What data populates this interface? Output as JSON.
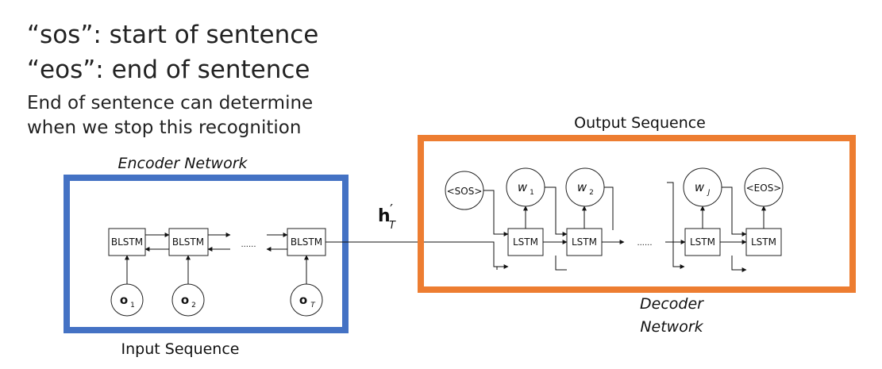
{
  "notes": {
    "sos": "“sos”: start of sentence",
    "eos": "“eos”: end of sentence",
    "line1": "End of sentence can determine",
    "line2": "when we stop this recognition"
  },
  "colors": {
    "encoder_frame": "#4472C4",
    "decoder_frame": "#ED7D31"
  },
  "encoder": {
    "title": "Encoder Network",
    "footer": "Input Sequence",
    "cell_label": "BLSTM",
    "inputs": [
      "o",
      "o",
      "o"
    ],
    "input_subs": [
      "1",
      "2",
      "T"
    ],
    "ellipsis": "......"
  },
  "context": {
    "base": "h",
    "prime": "′",
    "sub": "T"
  },
  "decoder": {
    "title": "Output Sequence",
    "footer_line1": "Decoder",
    "footer_line2": "Network",
    "cell_label": "LSTM",
    "sos": "<SOS>",
    "eos": "<EOS>",
    "outputs": [
      "w",
      "w",
      "w"
    ],
    "output_subs": [
      "1",
      "2",
      "J"
    ],
    "ellipsis": "......"
  }
}
